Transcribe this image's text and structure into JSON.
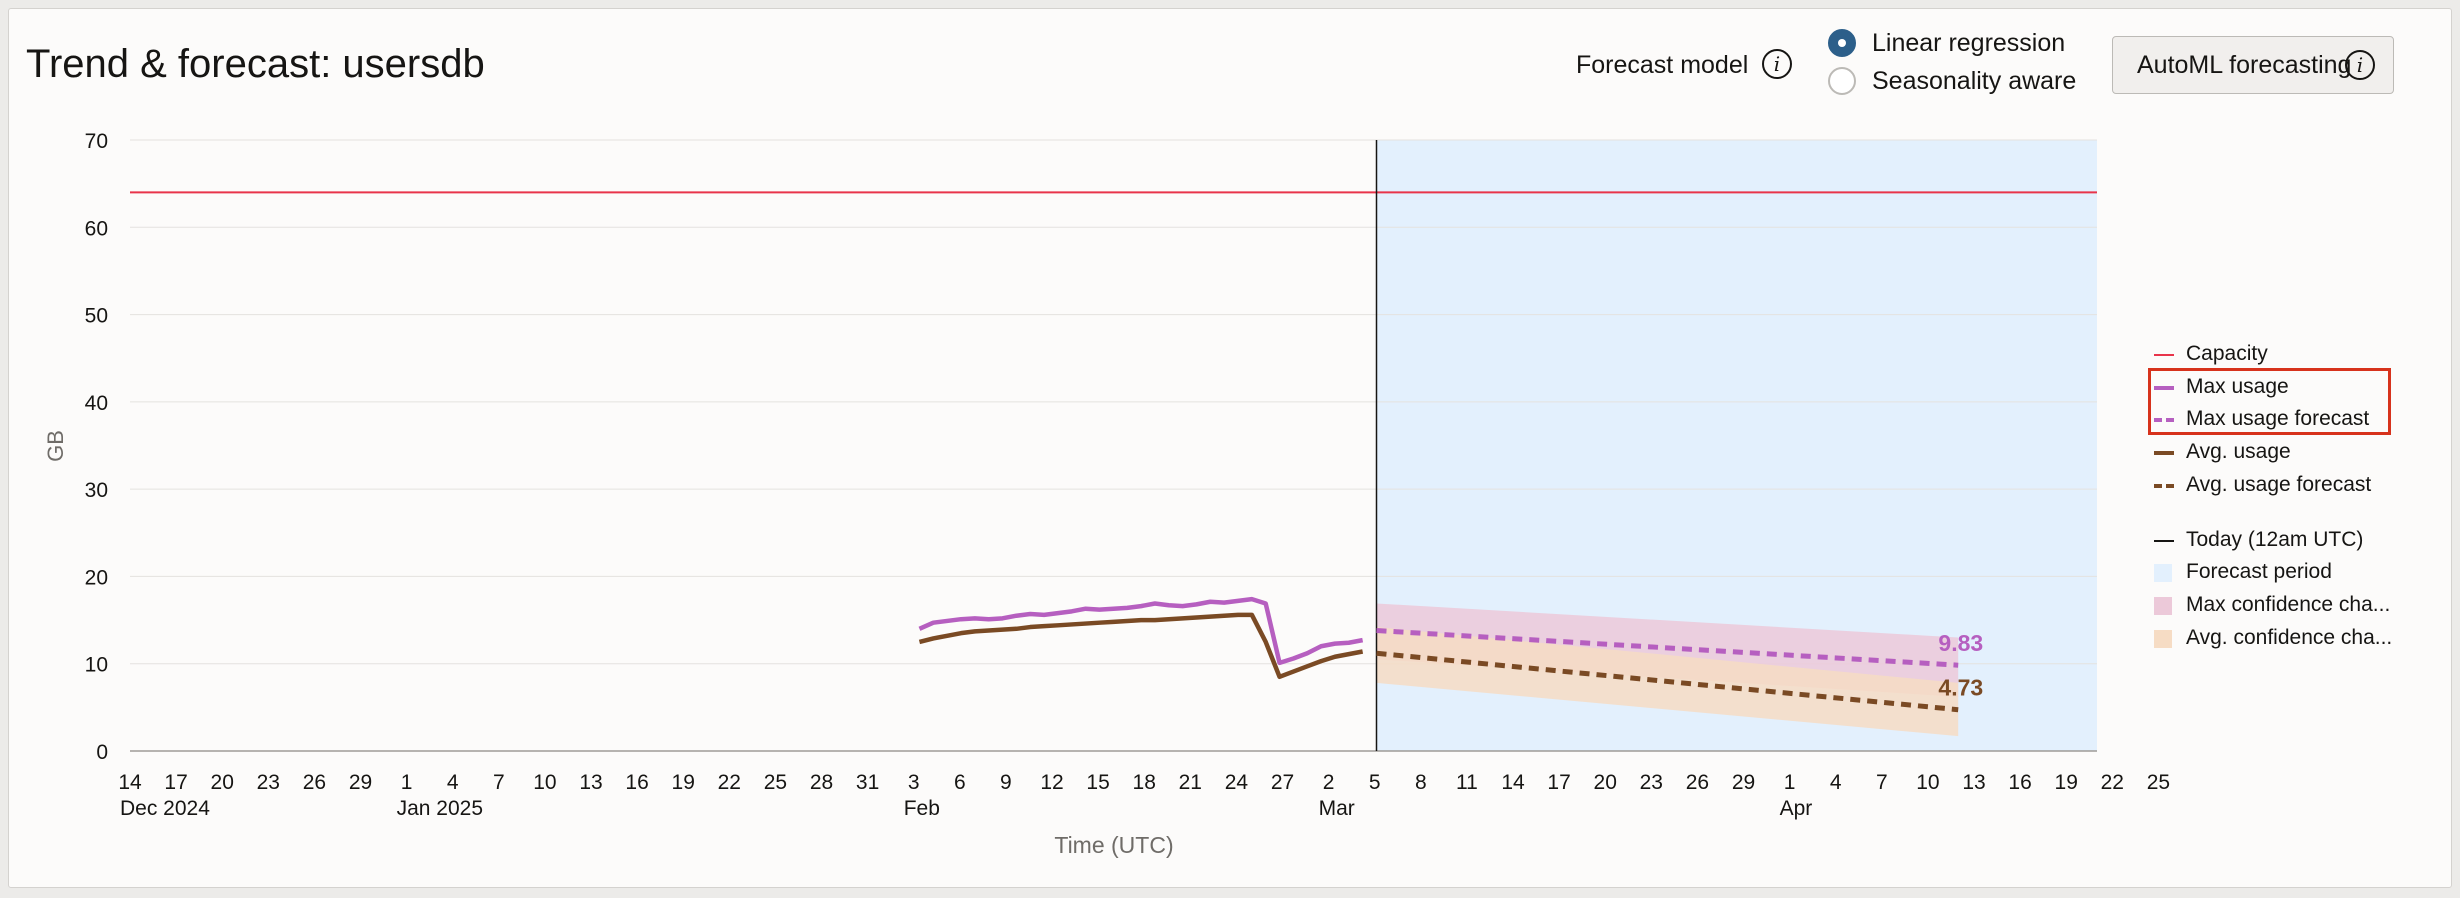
{
  "header": {
    "title": "Trend & forecast: usersdb",
    "forecast_model_label": "Forecast model",
    "forecast_model_info_icon": "info-icon",
    "radio_options": [
      {
        "label": "Linear regression",
        "checked": true
      },
      {
        "label": "Seasonality aware",
        "checked": false
      }
    ],
    "automl_button_label": "AutoML forecasting",
    "automl_info_icon": "info-icon"
  },
  "chart_data": {
    "type": "line",
    "title": "",
    "xlabel": "Time (UTC)",
    "ylabel": "GB",
    "ylim": [
      0,
      70
    ],
    "yticks": [
      0,
      10,
      20,
      30,
      40,
      50,
      60,
      70
    ],
    "xlim": [
      "2024-12-14",
      "2025-03-28"
    ],
    "xticks": [
      "14",
      "17",
      "20",
      "23",
      "26",
      "29",
      "1",
      "4",
      "7",
      "10",
      "13",
      "16",
      "19",
      "22",
      "25",
      "28",
      "31",
      "3",
      "6",
      "9",
      "12",
      "15",
      "18",
      "21",
      "24",
      "27",
      "2",
      "5",
      "8",
      "11",
      "14",
      "17",
      "20",
      "23",
      "26",
      "29",
      "1",
      "4",
      "7",
      "10",
      "13",
      "16",
      "19",
      "22",
      "25"
    ],
    "x_group_labels": [
      {
        "label": "Dec 2024",
        "tick": 0
      },
      {
        "label": "Jan 2025",
        "tick": 6
      },
      {
        "label": "Feb",
        "tick": 17
      },
      {
        "label": "Mar",
        "tick": 26
      },
      {
        "label": "Apr",
        "tick": 36
      }
    ],
    "grid": true,
    "today": {
      "label": "Today (12am UTC)",
      "date": "2025-03-14"
    },
    "forecast_period": {
      "start": "2025-03-14",
      "end": "2025-04-25"
    },
    "capacity": {
      "name": "Capacity",
      "value": 64,
      "color": "#e8344a"
    },
    "series": [
      {
        "name": "Max usage",
        "color": "#b65fc0",
        "style": "solid",
        "x": [
          "2025-02-09",
          "2025-02-10",
          "2025-02-11",
          "2025-02-12",
          "2025-02-13",
          "2025-02-14",
          "2025-02-15",
          "2025-02-16",
          "2025-02-17",
          "2025-02-18",
          "2025-02-19",
          "2025-02-20",
          "2025-02-21",
          "2025-02-22",
          "2025-02-23",
          "2025-02-24",
          "2025-02-25",
          "2025-02-26",
          "2025-02-27",
          "2025-02-28",
          "2025-03-01",
          "2025-03-02",
          "2025-03-03",
          "2025-03-04",
          "2025-03-05",
          "2025-03-06",
          "2025-03-07",
          "2025-03-08",
          "2025-03-09",
          "2025-03-10",
          "2025-03-11",
          "2025-03-12",
          "2025-03-13"
        ],
        "values": [
          14.0,
          14.7,
          14.9,
          15.1,
          15.2,
          15.1,
          15.2,
          15.5,
          15.7,
          15.6,
          15.8,
          16.0,
          16.3,
          16.2,
          16.3,
          16.4,
          16.6,
          16.9,
          16.7,
          16.6,
          16.8,
          17.1,
          17.0,
          17.2,
          17.4,
          16.9,
          10.1,
          10.6,
          11.2,
          12.0,
          12.3,
          12.4,
          12.7
        ]
      },
      {
        "name": "Avg. usage",
        "color": "#7a4a24",
        "style": "solid",
        "x": [
          "2025-02-09",
          "2025-02-10",
          "2025-02-11",
          "2025-02-12",
          "2025-02-13",
          "2025-02-14",
          "2025-02-15",
          "2025-02-16",
          "2025-02-17",
          "2025-02-18",
          "2025-02-19",
          "2025-02-20",
          "2025-02-21",
          "2025-02-22",
          "2025-02-23",
          "2025-02-24",
          "2025-02-25",
          "2025-02-26",
          "2025-02-27",
          "2025-02-28",
          "2025-03-01",
          "2025-03-02",
          "2025-03-03",
          "2025-03-04",
          "2025-03-05",
          "2025-03-06",
          "2025-03-07",
          "2025-03-08",
          "2025-03-09",
          "2025-03-10",
          "2025-03-11",
          "2025-03-12",
          "2025-03-13"
        ],
        "values": [
          12.5,
          12.9,
          13.2,
          13.5,
          13.7,
          13.8,
          13.9,
          14.0,
          14.2,
          14.3,
          14.4,
          14.5,
          14.6,
          14.7,
          14.8,
          14.9,
          15.0,
          15.0,
          15.1,
          15.2,
          15.3,
          15.4,
          15.5,
          15.6,
          15.6,
          12.5,
          8.5,
          9.1,
          9.7,
          10.3,
          10.8,
          11.1,
          11.4
        ]
      },
      {
        "name": "Max usage forecast",
        "color": "#b65fc0",
        "style": "dashed",
        "x": [
          "2025-03-14",
          "2025-04-25"
        ],
        "values": [
          13.8,
          9.83
        ],
        "end_label": "9.83"
      },
      {
        "name": "Avg. usage forecast",
        "color": "#7a4a24",
        "style": "dashed",
        "x": [
          "2025-03-14",
          "2025-04-25"
        ],
        "values": [
          11.2,
          4.73
        ],
        "end_label": "4.73"
      }
    ],
    "bands": [
      {
        "name": "Max confidence cha...",
        "color": "#ecc9d9",
        "x": [
          "2025-03-14",
          "2025-04-25"
        ],
        "lower": [
          10.5,
          6.2
        ],
        "upper": [
          16.9,
          13.0
        ]
      },
      {
        "name": "Avg. confidence cha...",
        "color": "#f6dcc4",
        "x": [
          "2025-03-14",
          "2025-04-25"
        ],
        "lower": [
          7.8,
          1.7
        ],
        "upper": [
          14.2,
          7.8
        ]
      }
    ],
    "forecast_period_color": "#e3f0fd",
    "legend": {
      "placement": "right",
      "items": [
        {
          "label": "Capacity",
          "kind": "line",
          "color": "#e8344a"
        },
        {
          "label": "Max usage",
          "kind": "thick",
          "color": "#b65fc0"
        },
        {
          "label": "Max usage forecast",
          "kind": "dashed",
          "color": "#b65fc0"
        },
        {
          "label": "Avg. usage",
          "kind": "thick",
          "color": "#7a4a24"
        },
        {
          "label": "Avg. usage forecast",
          "kind": "dashed",
          "color": "#7a4a24"
        },
        {
          "label": "Today (12am UTC)",
          "kind": "line",
          "color": "#161513",
          "gap_before": true
        },
        {
          "label": "Forecast period",
          "kind": "square",
          "color": "#e3f0fd"
        },
        {
          "label": "Max confidence cha...",
          "kind": "square",
          "color": "#ecc9d9"
        },
        {
          "label": "Avg. confidence cha...",
          "kind": "square",
          "color": "#f6dcc4"
        }
      ],
      "highlighted": [
        "Max usage",
        "Max usage forecast"
      ],
      "highlight_color": "#d7321c"
    }
  }
}
